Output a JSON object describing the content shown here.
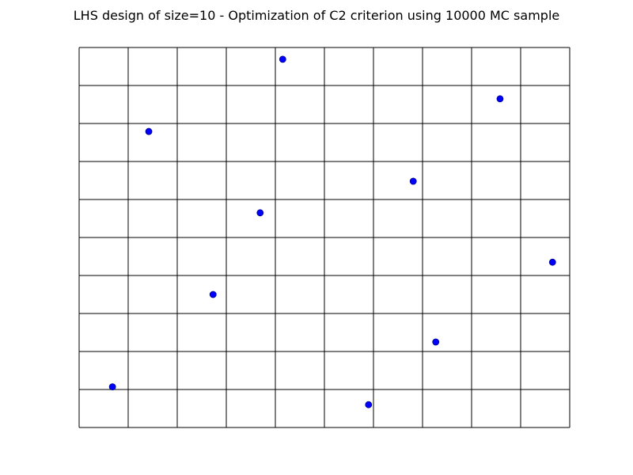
{
  "chart_data": {
    "type": "scatter",
    "title": "LHS design of size=10 - Optimization of C2 criterion using 10000 MC sample",
    "xlabel": "",
    "ylabel": "",
    "xlim": [
      0,
      1
    ],
    "ylim": [
      0,
      1
    ],
    "grid": true,
    "grid_divisions": 10,
    "point_color": "#0000ff",
    "point_edge_color": "#00008b",
    "points": [
      {
        "x": 0.068,
        "y": 0.107
      },
      {
        "x": 0.142,
        "y": 0.779
      },
      {
        "x": 0.273,
        "y": 0.35
      },
      {
        "x": 0.369,
        "y": 0.565
      },
      {
        "x": 0.415,
        "y": 0.969
      },
      {
        "x": 0.59,
        "y": 0.06
      },
      {
        "x": 0.681,
        "y": 0.648
      },
      {
        "x": 0.727,
        "y": 0.225
      },
      {
        "x": 0.858,
        "y": 0.865
      },
      {
        "x": 0.965,
        "y": 0.435
      }
    ]
  }
}
